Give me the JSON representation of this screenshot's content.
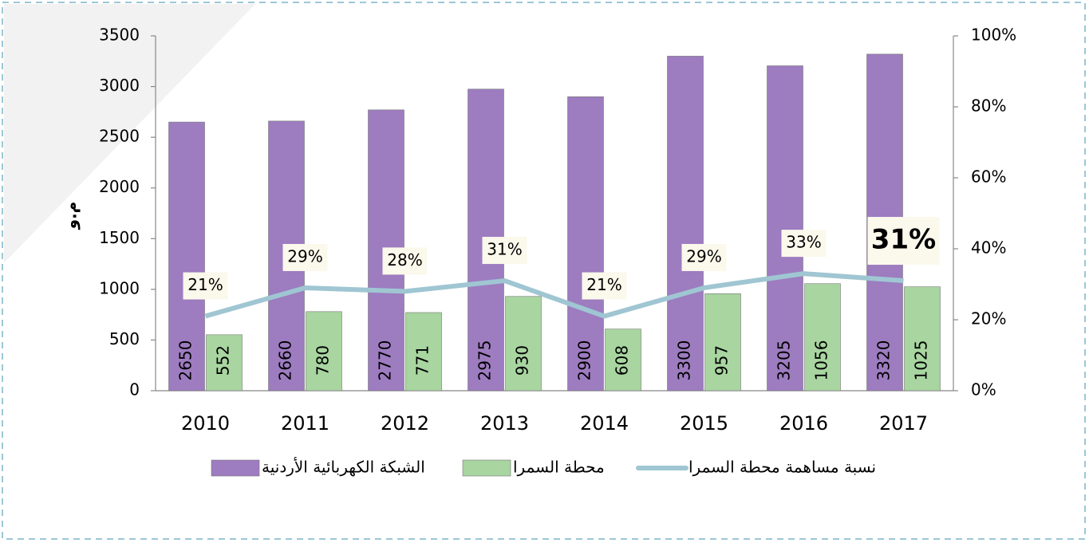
{
  "chart_data": {
    "type": "bar",
    "categories": [
      "2010",
      "2011",
      "2012",
      "2013",
      "2014",
      "2015",
      "2016",
      "2017"
    ],
    "series": [
      {
        "name": "الشبكة الكهربائية الأردنية",
        "color": "#9d7cc0",
        "values": [
          2650,
          2660,
          2770,
          2975,
          2900,
          3300,
          3205,
          3320
        ]
      },
      {
        "name": "محطة السمرا",
        "color": "#a8d5a0",
        "values": [
          552,
          780,
          771,
          930,
          608,
          957,
          1056,
          1025
        ]
      },
      {
        "name": "نسبة مساهمة محطة السمرا",
        "type": "line",
        "axis": "y2",
        "color": "#9fc6d2",
        "values": [
          21,
          29,
          28,
          31,
          21,
          29,
          33,
          31
        ],
        "value_labels": [
          "21%",
          "29%",
          "28%",
          "31%",
          "21%",
          "29%",
          "33%",
          "31%"
        ]
      }
    ],
    "y_label": "م.و",
    "ylim": [
      0,
      3500
    ],
    "yticks": [
      0,
      500,
      1000,
      1500,
      2000,
      2500,
      3000,
      3500
    ],
    "y2lim": [
      0,
      100
    ],
    "y2ticks": [
      {
        "value": 0,
        "label": "0%"
      },
      {
        "value": 20,
        "label": "20%"
      },
      {
        "value": 40,
        "label": "40%"
      },
      {
        "value": 60,
        "label": "60%"
      },
      {
        "value": 80,
        "label": "80%"
      },
      {
        "value": 100,
        "label": "100%"
      }
    ]
  }
}
